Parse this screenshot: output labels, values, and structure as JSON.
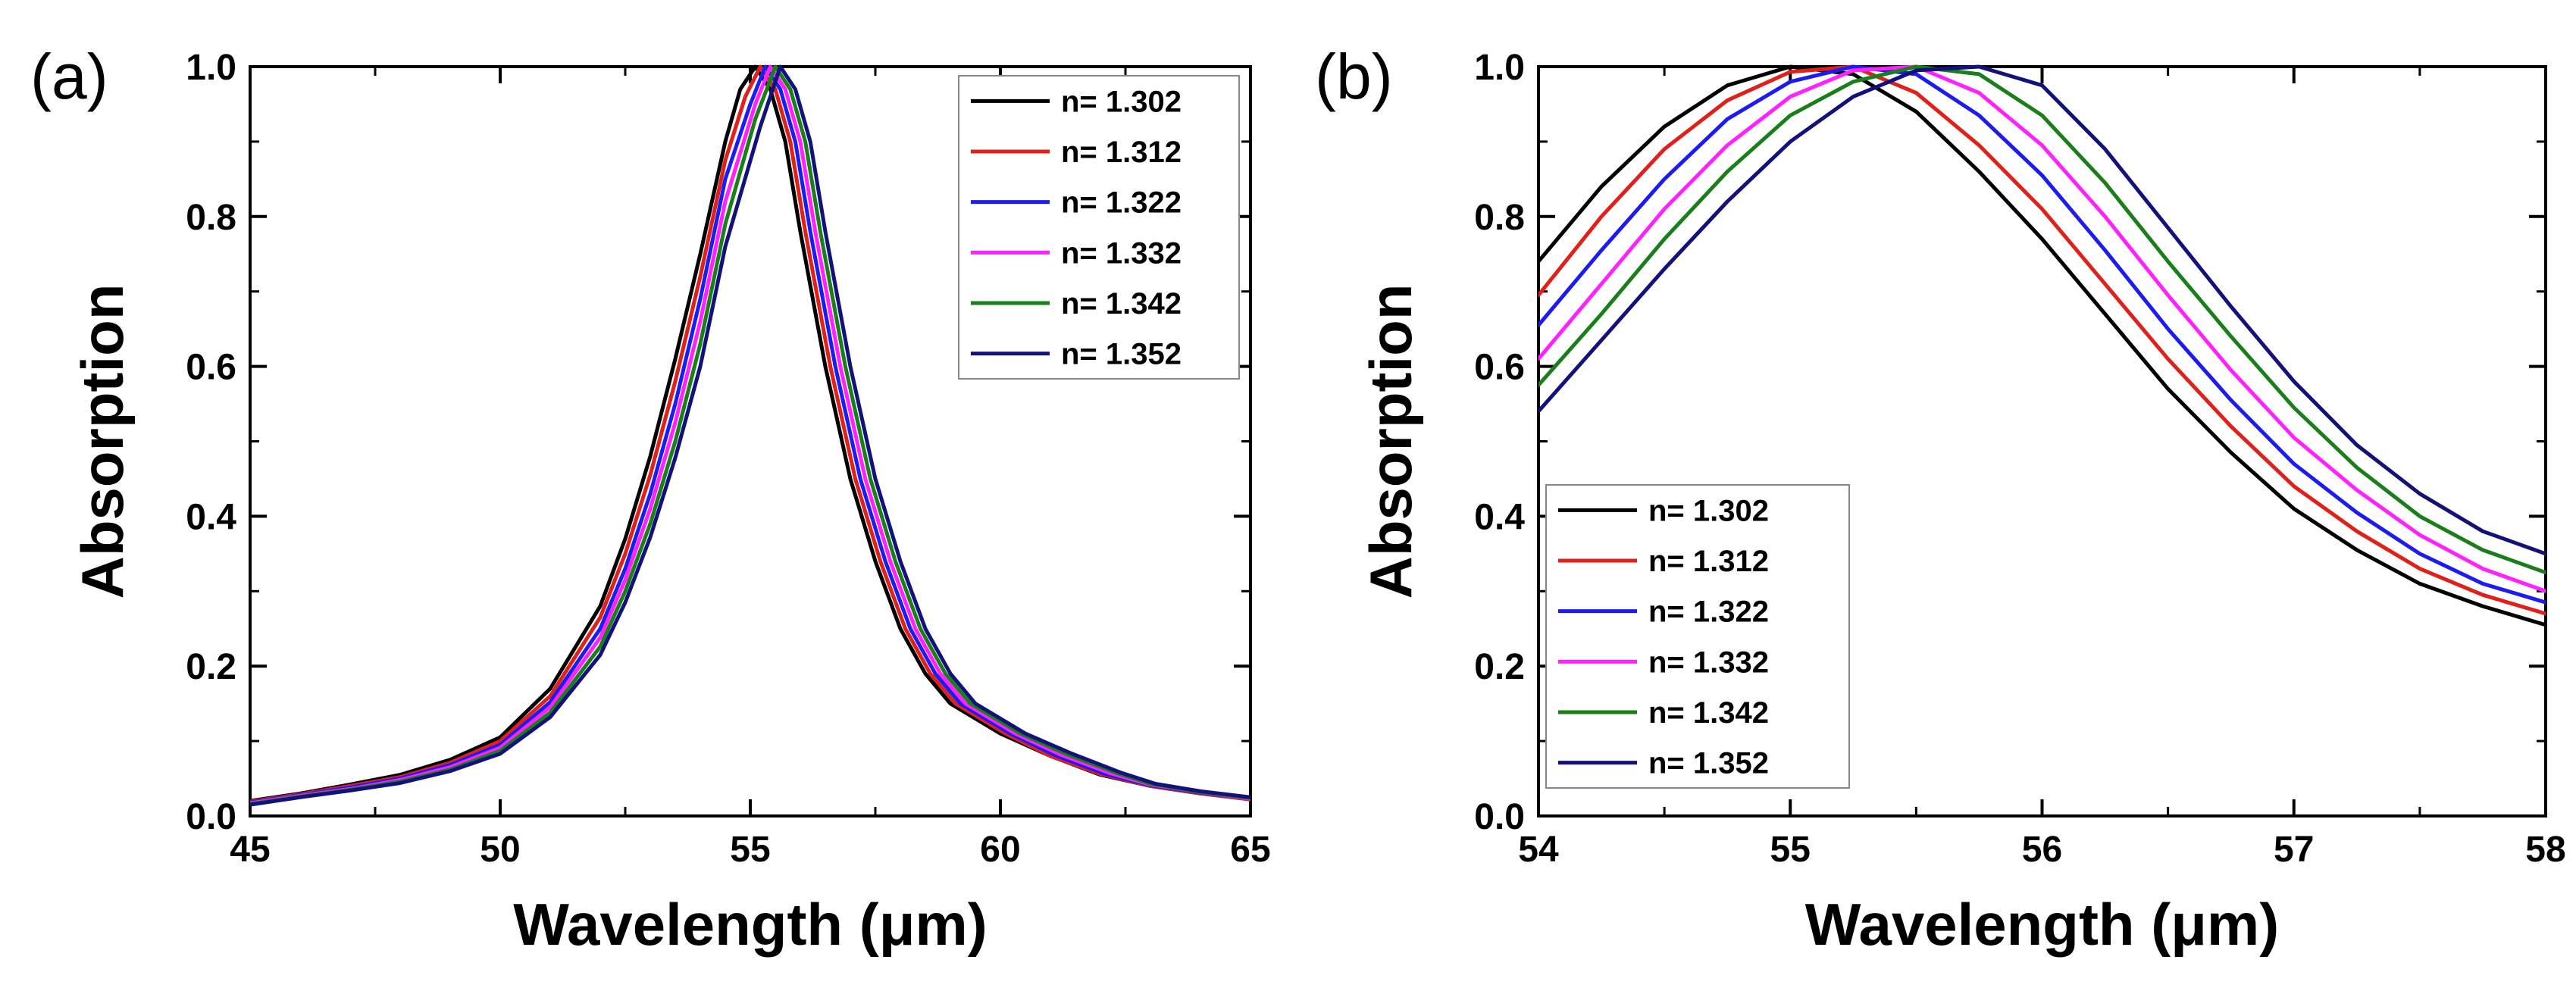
{
  "chart_data": [
    {
      "type": "line",
      "panel_label": "(a)",
      "xlabel": "Wavelength (μm)",
      "ylabel": "Absorption",
      "xlim": [
        45,
        65
      ],
      "ylim": [
        0.0,
        1.0
      ],
      "xticks": [
        "45",
        "50",
        "55",
        "60",
        "65"
      ],
      "yticks": [
        "0.0",
        "0.2",
        "0.4",
        "0.6",
        "0.8",
        "1.0"
      ],
      "legend_position": "top-right",
      "series": [
        {
          "name": "n= 1.302",
          "color": "#000000",
          "x": [
            45,
            46,
            47,
            48,
            49,
            50,
            51,
            52,
            52.5,
            53,
            53.5,
            54,
            54.5,
            54.8,
            55.1,
            55.4,
            55.7,
            56,
            56.5,
            57,
            57.5,
            58,
            58.5,
            59,
            60,
            61,
            62,
            63,
            64,
            65
          ],
          "y": [
            0.02,
            0.03,
            0.042,
            0.055,
            0.075,
            0.105,
            0.17,
            0.28,
            0.37,
            0.48,
            0.61,
            0.75,
            0.9,
            0.97,
            1.0,
            0.97,
            0.9,
            0.78,
            0.6,
            0.45,
            0.34,
            0.25,
            0.19,
            0.15,
            0.11,
            0.08,
            0.055,
            0.04,
            0.03,
            0.022
          ]
        },
        {
          "name": "n= 1.312",
          "color": "#e0201b",
          "x": [
            45,
            46,
            47,
            48,
            49,
            50,
            51,
            52,
            52.5,
            53,
            53.5,
            54,
            54.5,
            54.9,
            55.2,
            55.5,
            55.8,
            56.1,
            56.6,
            57.1,
            57.6,
            58.1,
            58.6,
            59.1,
            60.1,
            61,
            62,
            63,
            64,
            65
          ],
          "y": [
            0.019,
            0.029,
            0.04,
            0.052,
            0.071,
            0.1,
            0.16,
            0.265,
            0.35,
            0.455,
            0.58,
            0.72,
            0.875,
            0.96,
            1.0,
            0.97,
            0.9,
            0.78,
            0.6,
            0.45,
            0.34,
            0.25,
            0.19,
            0.15,
            0.11,
            0.08,
            0.056,
            0.04,
            0.03,
            0.022
          ]
        },
        {
          "name": "n= 1.322",
          "color": "#1c1cf0",
          "x": [
            45,
            46,
            47,
            48,
            49,
            50,
            51,
            52,
            52.5,
            53,
            53.5,
            54,
            54.5,
            55,
            55.3,
            55.6,
            55.9,
            56.2,
            56.7,
            57.2,
            57.7,
            58.2,
            58.7,
            59.2,
            60.2,
            61.1,
            62.1,
            63,
            64,
            65
          ],
          "y": [
            0.018,
            0.028,
            0.038,
            0.05,
            0.068,
            0.095,
            0.152,
            0.25,
            0.33,
            0.43,
            0.55,
            0.69,
            0.85,
            0.95,
            1.0,
            0.97,
            0.9,
            0.78,
            0.6,
            0.45,
            0.34,
            0.25,
            0.19,
            0.15,
            0.11,
            0.081,
            0.056,
            0.041,
            0.031,
            0.023
          ]
        },
        {
          "name": "n= 1.332",
          "color": "#ff22ff",
          "x": [
            45,
            46,
            47,
            48,
            49,
            50,
            51,
            52,
            52.5,
            53,
            53.5,
            54,
            54.5,
            55.1,
            55.4,
            55.7,
            56,
            56.3,
            56.8,
            57.3,
            57.8,
            58.3,
            58.8,
            59.3,
            60.3,
            61.2,
            62.2,
            63,
            64,
            65
          ],
          "y": [
            0.017,
            0.027,
            0.036,
            0.048,
            0.065,
            0.091,
            0.145,
            0.238,
            0.315,
            0.41,
            0.525,
            0.66,
            0.82,
            0.95,
            1.0,
            0.97,
            0.9,
            0.78,
            0.6,
            0.45,
            0.34,
            0.25,
            0.19,
            0.15,
            0.11,
            0.082,
            0.057,
            0.042,
            0.032,
            0.023
          ]
        },
        {
          "name": "n= 1.342",
          "color": "#1a7f1a",
          "x": [
            45,
            46,
            47,
            48,
            49,
            50,
            51,
            52,
            52.5,
            53,
            53.5,
            54,
            54.5,
            55.1,
            55.5,
            55.8,
            56.1,
            56.4,
            56.9,
            57.4,
            57.9,
            58.4,
            58.9,
            59.4,
            60.4,
            61.3,
            62.3,
            63,
            64,
            65
          ],
          "y": [
            0.016,
            0.026,
            0.035,
            0.046,
            0.062,
            0.087,
            0.138,
            0.226,
            0.3,
            0.39,
            0.5,
            0.63,
            0.79,
            0.93,
            1.0,
            0.97,
            0.9,
            0.78,
            0.6,
            0.45,
            0.34,
            0.25,
            0.19,
            0.15,
            0.11,
            0.083,
            0.058,
            0.043,
            0.032,
            0.024
          ]
        },
        {
          "name": "n= 1.352",
          "color": "#12127a",
          "x": [
            45,
            46,
            47,
            48,
            49,
            50,
            51,
            52,
            52.5,
            53,
            53.5,
            54,
            54.5,
            55.2,
            55.6,
            55.9,
            56.2,
            56.5,
            57,
            57.5,
            58,
            58.5,
            59,
            59.5,
            60.5,
            61.4,
            62.4,
            63.1,
            64,
            65
          ],
          "y": [
            0.015,
            0.025,
            0.034,
            0.044,
            0.06,
            0.083,
            0.132,
            0.215,
            0.285,
            0.372,
            0.478,
            0.6,
            0.76,
            0.92,
            1.0,
            0.97,
            0.9,
            0.78,
            0.6,
            0.45,
            0.34,
            0.25,
            0.19,
            0.15,
            0.11,
            0.084,
            0.058,
            0.043,
            0.033,
            0.025
          ]
        }
      ]
    },
    {
      "type": "line",
      "panel_label": "(b)",
      "xlabel": "Wavelength (μm)",
      "ylabel": "Absorption",
      "xlim": [
        54,
        58
      ],
      "ylim": [
        0.0,
        1.0
      ],
      "xticks": [
        "54",
        "55",
        "56",
        "57",
        "58"
      ],
      "yticks": [
        "0.0",
        "0.2",
        "0.4",
        "0.6",
        "0.8",
        "1.0"
      ],
      "legend_position": "bottom-left",
      "series": [
        {
          "name": "n= 1.302",
          "color": "#000000",
          "x": [
            54,
            54.25,
            54.5,
            54.75,
            55,
            55.25,
            55.5,
            55.75,
            56,
            56.25,
            56.5,
            56.75,
            57,
            57.25,
            57.5,
            57.75,
            58
          ],
          "y": [
            0.74,
            0.84,
            0.92,
            0.975,
            1.0,
            0.99,
            0.94,
            0.86,
            0.77,
            0.67,
            0.57,
            0.485,
            0.41,
            0.355,
            0.31,
            0.28,
            0.255
          ]
        },
        {
          "name": "n= 1.312",
          "color": "#e0201b",
          "x": [
            54,
            54.25,
            54.5,
            54.75,
            55,
            55.25,
            55.5,
            55.75,
            56,
            56.25,
            56.5,
            56.75,
            57,
            57.25,
            57.5,
            57.75,
            58
          ],
          "y": [
            0.695,
            0.8,
            0.89,
            0.955,
            0.993,
            1.0,
            0.965,
            0.895,
            0.81,
            0.71,
            0.61,
            0.52,
            0.44,
            0.38,
            0.33,
            0.295,
            0.27
          ]
        },
        {
          "name": "n= 1.322",
          "color": "#1c1cf0",
          "x": [
            54,
            54.25,
            54.5,
            54.75,
            55,
            55.25,
            55.5,
            55.75,
            56,
            56.25,
            56.5,
            56.75,
            57,
            57.25,
            57.5,
            57.75,
            58
          ],
          "y": [
            0.655,
            0.755,
            0.85,
            0.93,
            0.98,
            1.0,
            0.99,
            0.935,
            0.855,
            0.755,
            0.65,
            0.555,
            0.47,
            0.405,
            0.35,
            0.31,
            0.285
          ]
        },
        {
          "name": "n= 1.332",
          "color": "#ff22ff",
          "x": [
            54,
            54.25,
            54.5,
            54.75,
            55,
            55.25,
            55.5,
            55.75,
            56,
            56.25,
            56.5,
            56.75,
            57,
            57.25,
            57.5,
            57.75,
            58
          ],
          "y": [
            0.61,
            0.71,
            0.81,
            0.895,
            0.96,
            0.995,
            1.0,
            0.965,
            0.895,
            0.8,
            0.695,
            0.595,
            0.505,
            0.435,
            0.375,
            0.33,
            0.3
          ]
        },
        {
          "name": "n= 1.342",
          "color": "#1a7f1a",
          "x": [
            54,
            54.25,
            54.5,
            54.75,
            55,
            55.25,
            55.5,
            55.75,
            56,
            56.25,
            56.5,
            56.75,
            57,
            57.25,
            57.5,
            57.75,
            58
          ],
          "y": [
            0.575,
            0.67,
            0.77,
            0.86,
            0.935,
            0.98,
            1.0,
            0.99,
            0.935,
            0.845,
            0.74,
            0.64,
            0.545,
            0.465,
            0.4,
            0.355,
            0.325
          ]
        },
        {
          "name": "n= 1.352",
          "color": "#12127a",
          "x": [
            54,
            54.25,
            54.5,
            54.75,
            55,
            55.25,
            55.5,
            55.75,
            56,
            56.25,
            56.5,
            56.75,
            57,
            57.25,
            57.5,
            57.75,
            58
          ],
          "y": [
            0.54,
            0.635,
            0.73,
            0.82,
            0.9,
            0.96,
            0.995,
            1.0,
            0.975,
            0.89,
            0.785,
            0.68,
            0.58,
            0.495,
            0.43,
            0.38,
            0.35
          ]
        }
      ]
    }
  ]
}
